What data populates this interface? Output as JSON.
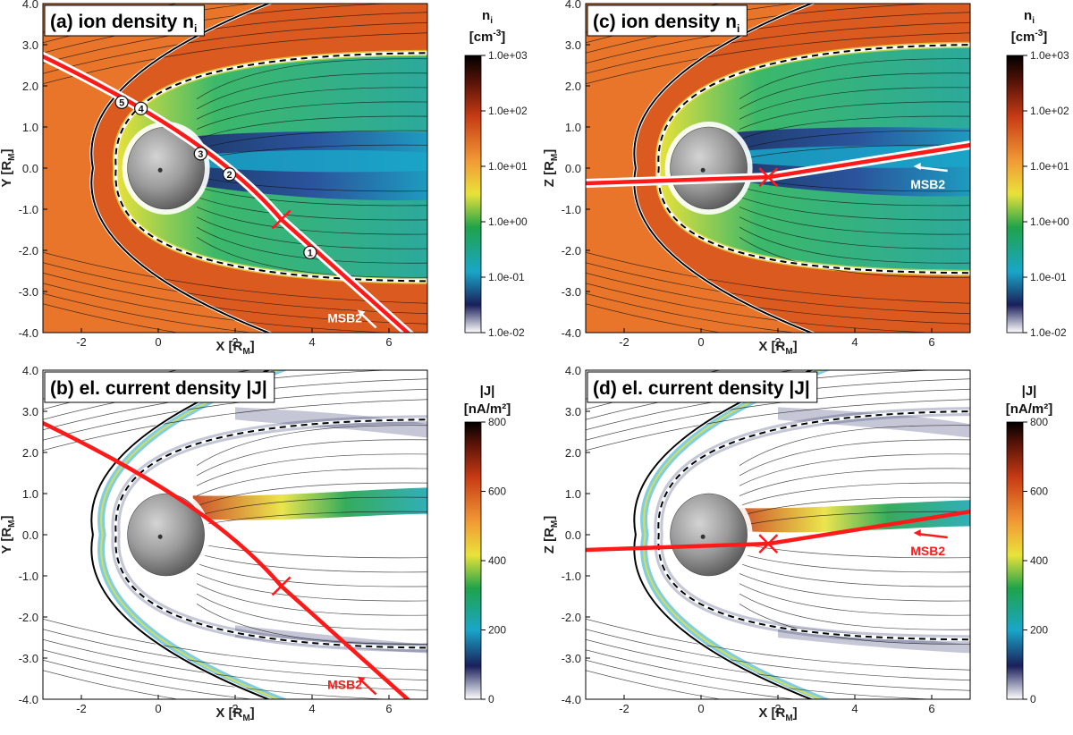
{
  "colors": {
    "orbit": "#ff1a1a",
    "outline": "#ffffff",
    "density_bg": "#e8752a",
    "density_hot": "#c93a12",
    "current_bg": "#ffffff"
  },
  "axes": {
    "x_ticks": [
      "-2",
      "0",
      "2",
      "4",
      "6"
    ],
    "y_ticks": [
      "4.0",
      "3.0",
      "2.0",
      "1.0",
      "0.0",
      "-1.0",
      "-2.0",
      "-3.0",
      "-4.0"
    ],
    "x_ticks_num": [
      -2,
      0,
      2,
      4,
      6
    ],
    "y_ticks_num": [
      4,
      3,
      2,
      1,
      0,
      -1,
      -2,
      -3,
      -4
    ],
    "x_range": [
      -3,
      7
    ],
    "y_range": [
      -4,
      4
    ]
  },
  "panels": [
    {
      "id": "a",
      "title": "(a) ion density n",
      "sub": "i",
      "ylabel": "Y",
      "ysub": "M",
      "xlabel": "X",
      "xsub": "M",
      "kind": "density",
      "plane": "xy",
      "msb_label": "MSB2",
      "msb_color": "#ffffff"
    },
    {
      "id": "c",
      "title": "(c) ion density n",
      "sub": "i",
      "ylabel": "Z",
      "ysub": "M",
      "xlabel": "X",
      "xsub": "M",
      "kind": "density",
      "plane": "xz",
      "msb_label": "MSB2",
      "msb_color": "#ffffff"
    },
    {
      "id": "b",
      "title": "(b) el. current density |J|",
      "sub": "",
      "ylabel": "Y",
      "ysub": "M",
      "xlabel": "X",
      "xsub": "M",
      "kind": "current",
      "plane": "xy",
      "msb_label": "MSB2",
      "msb_color": "#ff1a1a"
    },
    {
      "id": "d",
      "title": "(d) el. current density |J|",
      "sub": "",
      "ylabel": "Z",
      "ysub": "M",
      "xlabel": "X",
      "xsub": "M",
      "kind": "current",
      "plane": "xz",
      "msb_label": "MSB2",
      "msb_color": "#ff1a1a"
    }
  ],
  "colorbars": {
    "density": {
      "title": "n",
      "title_sub": "i",
      "unit": "[cm",
      "unit_sup": "-3",
      "unit_end": "]",
      "ticks": [
        "1.0e+03",
        "1.0e+02",
        "1.0e+01",
        "1.0e+00",
        "1.0e-01",
        "1.0e-02"
      ]
    },
    "current": {
      "title": "|J|",
      "unit": "[nA/m²]",
      "ticks": [
        "800",
        "600",
        "400",
        "200",
        "0"
      ]
    }
  },
  "markers": [
    "1",
    "2",
    "3",
    "4",
    "5"
  ]
}
